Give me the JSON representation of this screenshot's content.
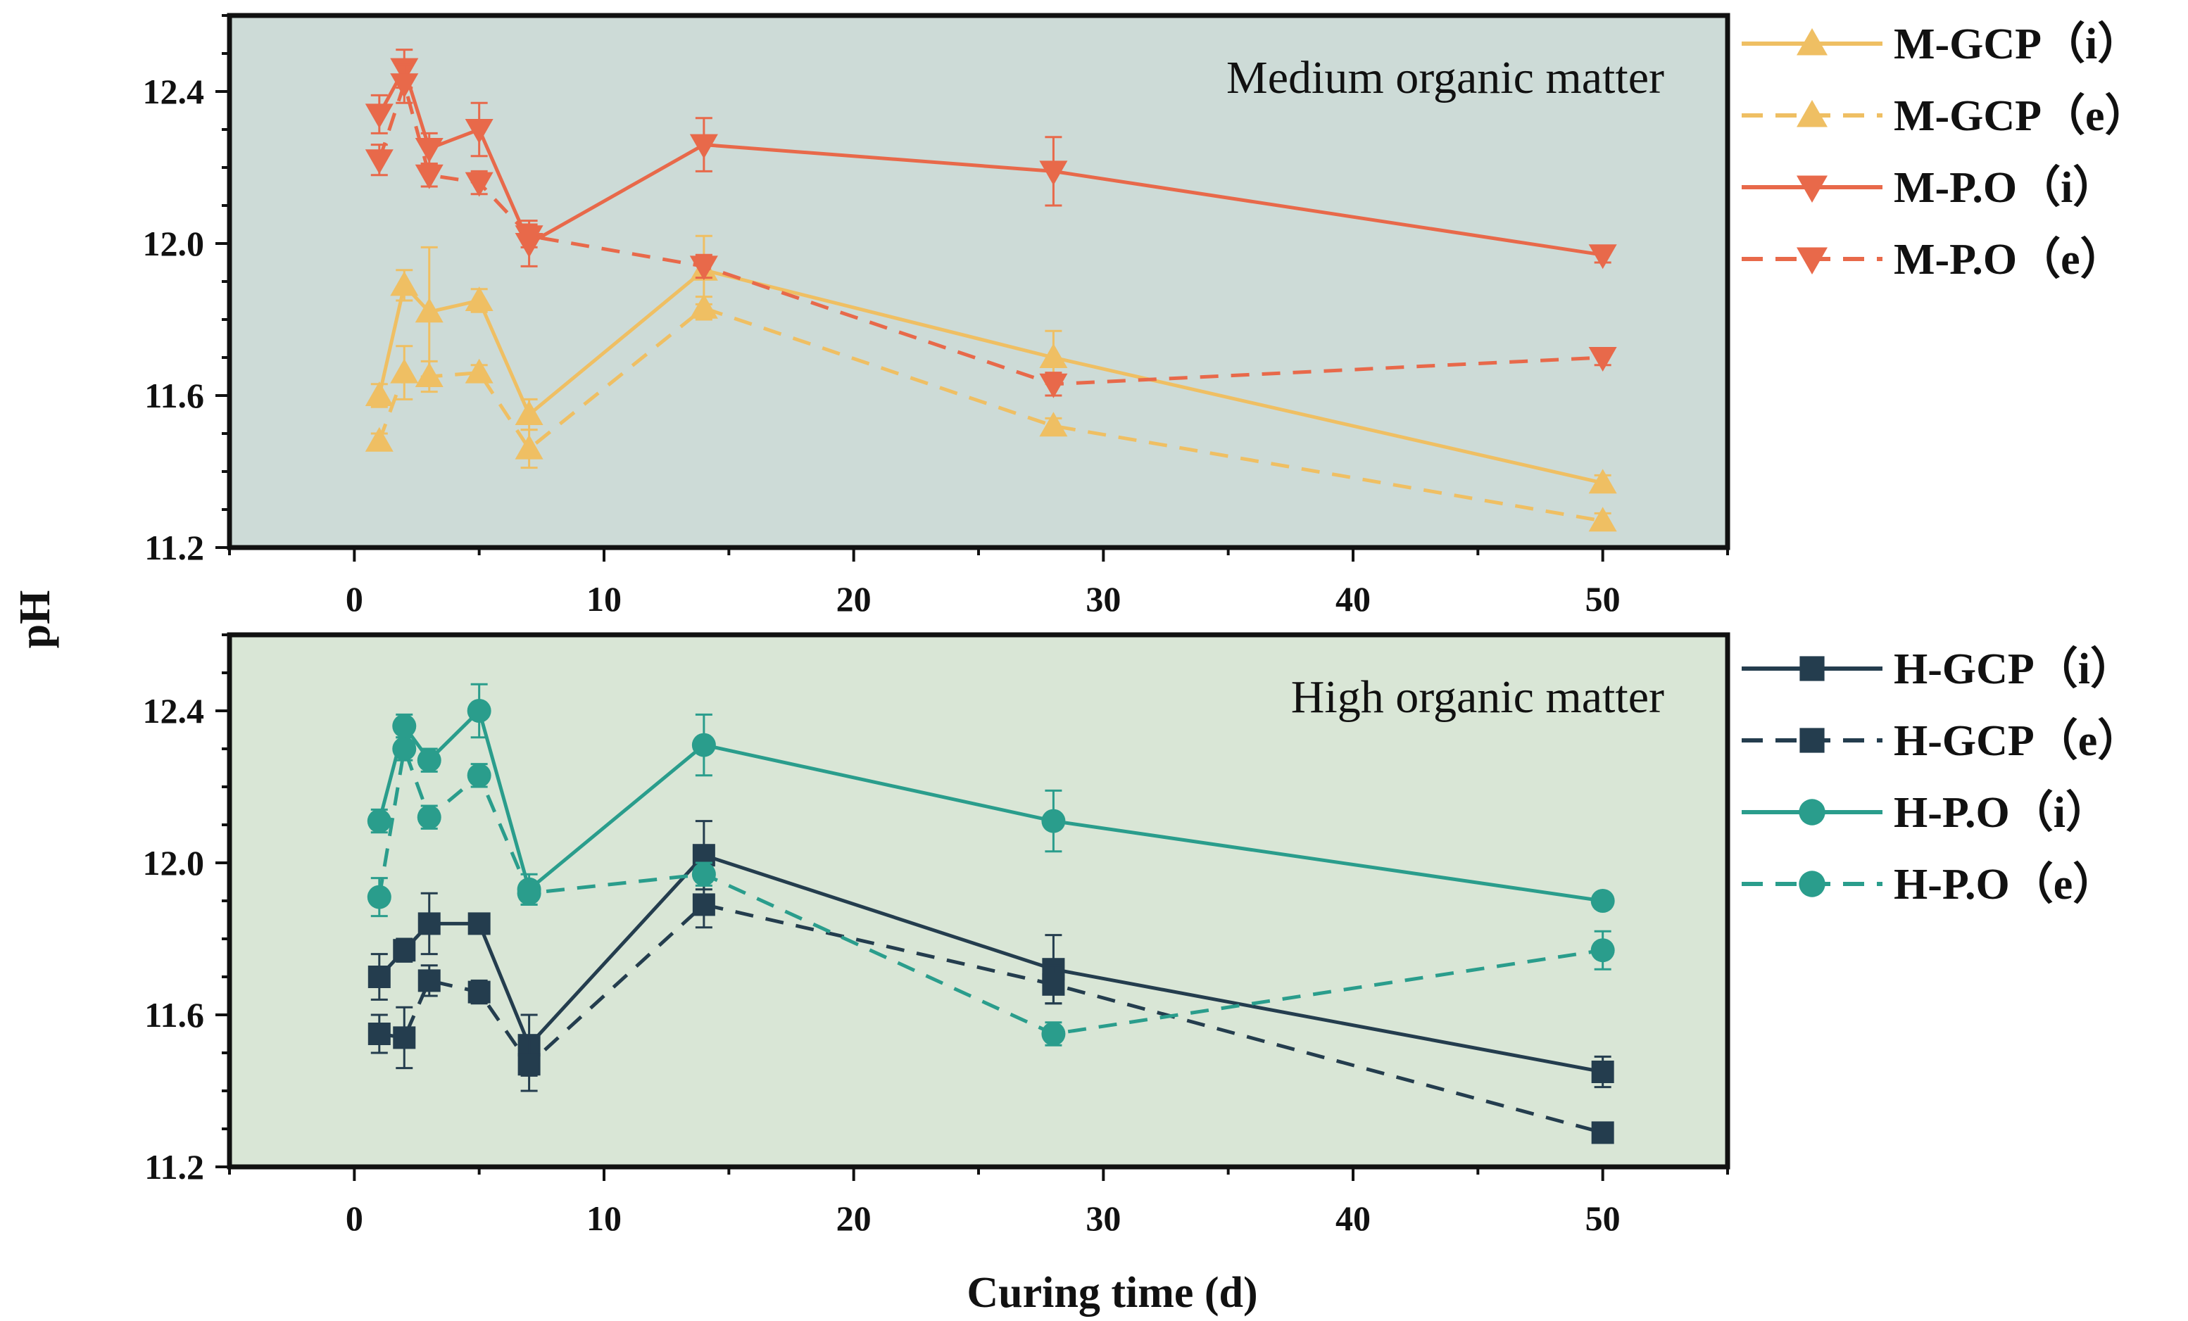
{
  "chart_data": [
    {
      "type": "line",
      "title": "",
      "annotation": "Medium organic matter",
      "xlabel": "",
      "ylabel": "pH",
      "xlim": [
        -5,
        55
      ],
      "ylim": [
        11.2,
        12.6
      ],
      "xticks": [
        0,
        10,
        20,
        30,
        40,
        50
      ],
      "yticks": [
        11.2,
        11.6,
        12.0,
        12.4
      ],
      "ytick_labels": [
        "11.2",
        "11.6",
        "12.0",
        "12.4"
      ],
      "background": "#cddbd7",
      "legend_position": "outside-right",
      "series": [
        {
          "name": "M-GCP（i）",
          "color": "#efbf63",
          "marker": "triangle-up",
          "dashed": false,
          "x": [
            1,
            2,
            3,
            5,
            7,
            14,
            28,
            50
          ],
          "y": [
            11.6,
            11.89,
            11.82,
            11.85,
            11.55,
            11.93,
            11.7,
            11.37
          ],
          "err": [
            0.03,
            0.04,
            0.17,
            0.03,
            0.04,
            0.09,
            0.07,
            0.02
          ]
        },
        {
          "name": "M-GCP（e）",
          "color": "#efbf63",
          "marker": "triangle-up",
          "dashed": true,
          "x": [
            1,
            2,
            3,
            5,
            7,
            14,
            28,
            50
          ],
          "y": [
            11.48,
            11.66,
            11.65,
            11.66,
            11.46,
            11.83,
            11.52,
            11.27
          ],
          "err": [
            0.02,
            0.07,
            0.04,
            0.02,
            0.05,
            0.03,
            0.02,
            0.02
          ]
        },
        {
          "name": "M-P.O（i）",
          "color": "#e8694a",
          "marker": "triangle-down",
          "dashed": false,
          "x": [
            1,
            2,
            3,
            5,
            7,
            14,
            28,
            50
          ],
          "y": [
            12.34,
            12.46,
            12.25,
            12.3,
            12.0,
            12.26,
            12.19,
            11.97
          ],
          "err": [
            0.05,
            0.05,
            0.04,
            0.07,
            0.06,
            0.07,
            0.09,
            0.02
          ]
        },
        {
          "name": "M-P.O（e）",
          "color": "#e8694a",
          "marker": "triangle-down",
          "dashed": true,
          "x": [
            1,
            2,
            3,
            5,
            7,
            14,
            28,
            50
          ],
          "y": [
            12.22,
            12.42,
            12.18,
            12.16,
            12.02,
            11.94,
            11.63,
            11.7
          ],
          "err": [
            0.04,
            0.05,
            0.03,
            0.03,
            0.03,
            0.03,
            0.03,
            0.02
          ]
        }
      ]
    },
    {
      "type": "line",
      "title": "",
      "annotation": "High organic matter",
      "xlabel": "Curing time (d)",
      "ylabel": "pH",
      "xlim": [
        -5,
        55
      ],
      "ylim": [
        11.2,
        12.6
      ],
      "xticks": [
        0,
        10,
        20,
        30,
        40,
        50
      ],
      "yticks": [
        11.2,
        11.6,
        12.0,
        12.4
      ],
      "ytick_labels": [
        "11.2",
        "11.6",
        "12.0",
        "12.4"
      ],
      "background": "#d9e6d6",
      "legend_position": "outside-right",
      "series": [
        {
          "name": "H-GCP（i）",
          "color": "#243d4e",
          "marker": "square",
          "dashed": false,
          "x": [
            1,
            2,
            3,
            5,
            7,
            14,
            28,
            50
          ],
          "y": [
            11.7,
            11.77,
            11.84,
            11.84,
            11.52,
            12.02,
            11.72,
            11.45
          ],
          "err": [
            0.06,
            0.03,
            0.08,
            0.02,
            0.08,
            0.09,
            0.09,
            0.04
          ]
        },
        {
          "name": "H-GCP（e）",
          "color": "#243d4e",
          "marker": "square",
          "dashed": true,
          "x": [
            1,
            2,
            3,
            5,
            7,
            14,
            28,
            50
          ],
          "y": [
            11.55,
            11.54,
            11.69,
            11.66,
            11.47,
            11.89,
            11.68,
            11.29
          ],
          "err": [
            0.05,
            0.08,
            0.04,
            0.03,
            0.07,
            0.06,
            0.05,
            0.02
          ]
        },
        {
          "name": "H-P.O（i）",
          "color": "#2a9d8c",
          "marker": "circle",
          "dashed": false,
          "x": [
            1,
            2,
            3,
            5,
            7,
            14,
            28,
            50
          ],
          "y": [
            12.11,
            12.36,
            12.27,
            12.4,
            11.93,
            12.31,
            12.11,
            11.9
          ],
          "err": [
            0.03,
            0.03,
            0.03,
            0.07,
            0.04,
            0.08,
            0.08,
            0.02
          ]
        },
        {
          "name": "H-P.O（e）",
          "color": "#2a9d8c",
          "marker": "circle",
          "dashed": true,
          "x": [
            1,
            2,
            3,
            5,
            7,
            14,
            28,
            50
          ],
          "y": [
            11.91,
            12.3,
            12.12,
            12.23,
            11.92,
            11.97,
            11.55,
            11.77
          ],
          "err": [
            0.05,
            0.03,
            0.03,
            0.03,
            0.03,
            0.03,
            0.03,
            0.05
          ]
        }
      ]
    }
  ]
}
